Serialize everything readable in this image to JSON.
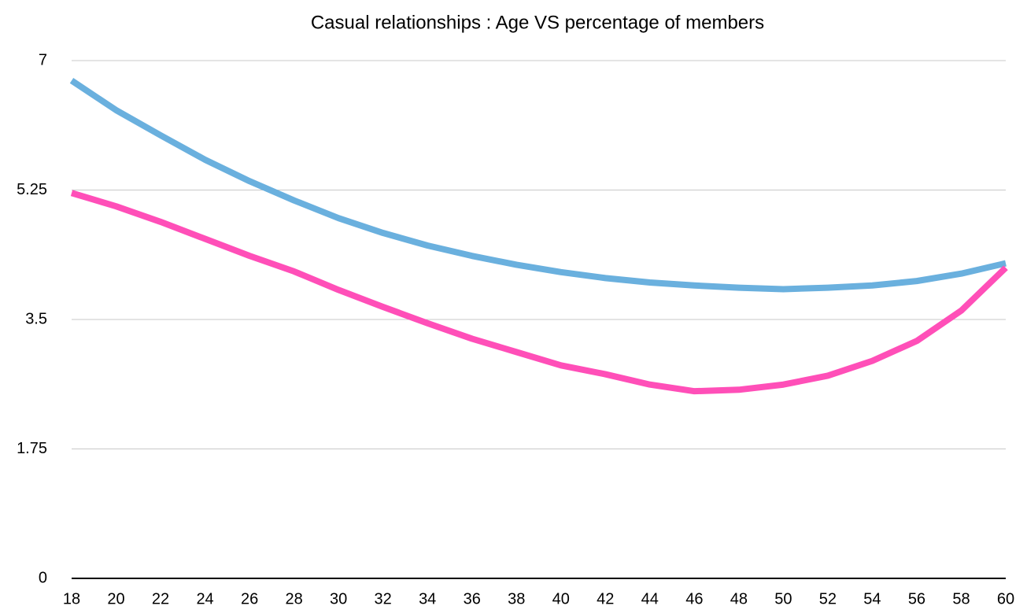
{
  "chart_data": {
    "type": "line",
    "title": "Casual relationships : Age VS percentage of members",
    "x": [
      18,
      20,
      22,
      24,
      26,
      28,
      30,
      32,
      34,
      36,
      38,
      40,
      42,
      44,
      46,
      48,
      50,
      52,
      54,
      56,
      58,
      60
    ],
    "series": [
      {
        "color": "#6ab0de",
        "values": [
          6.73,
          6.33,
          5.99,
          5.66,
          5.37,
          5.11,
          4.87,
          4.67,
          4.5,
          4.36,
          4.24,
          4.14,
          4.06,
          4.0,
          3.96,
          3.93,
          3.91,
          3.93,
          3.96,
          4.02,
          4.12,
          4.26
        ]
      },
      {
        "color": "#ff4fb8",
        "values": [
          5.21,
          5.03,
          4.82,
          4.59,
          4.36,
          4.15,
          3.9,
          3.67,
          3.45,
          3.24,
          3.06,
          2.88,
          2.76,
          2.62,
          2.53,
          2.55,
          2.62,
          2.74,
          2.94,
          3.21,
          3.62,
          4.2
        ]
      }
    ],
    "xlim": [
      18,
      60
    ],
    "xticks": [
      18,
      20,
      22,
      24,
      26,
      28,
      30,
      32,
      34,
      36,
      38,
      40,
      42,
      44,
      46,
      48,
      50,
      52,
      54,
      56,
      58,
      60
    ],
    "ylim": [
      0,
      7
    ],
    "yticks": [
      0,
      1.75,
      3.5,
      5.25,
      7
    ],
    "grid": true
  }
}
